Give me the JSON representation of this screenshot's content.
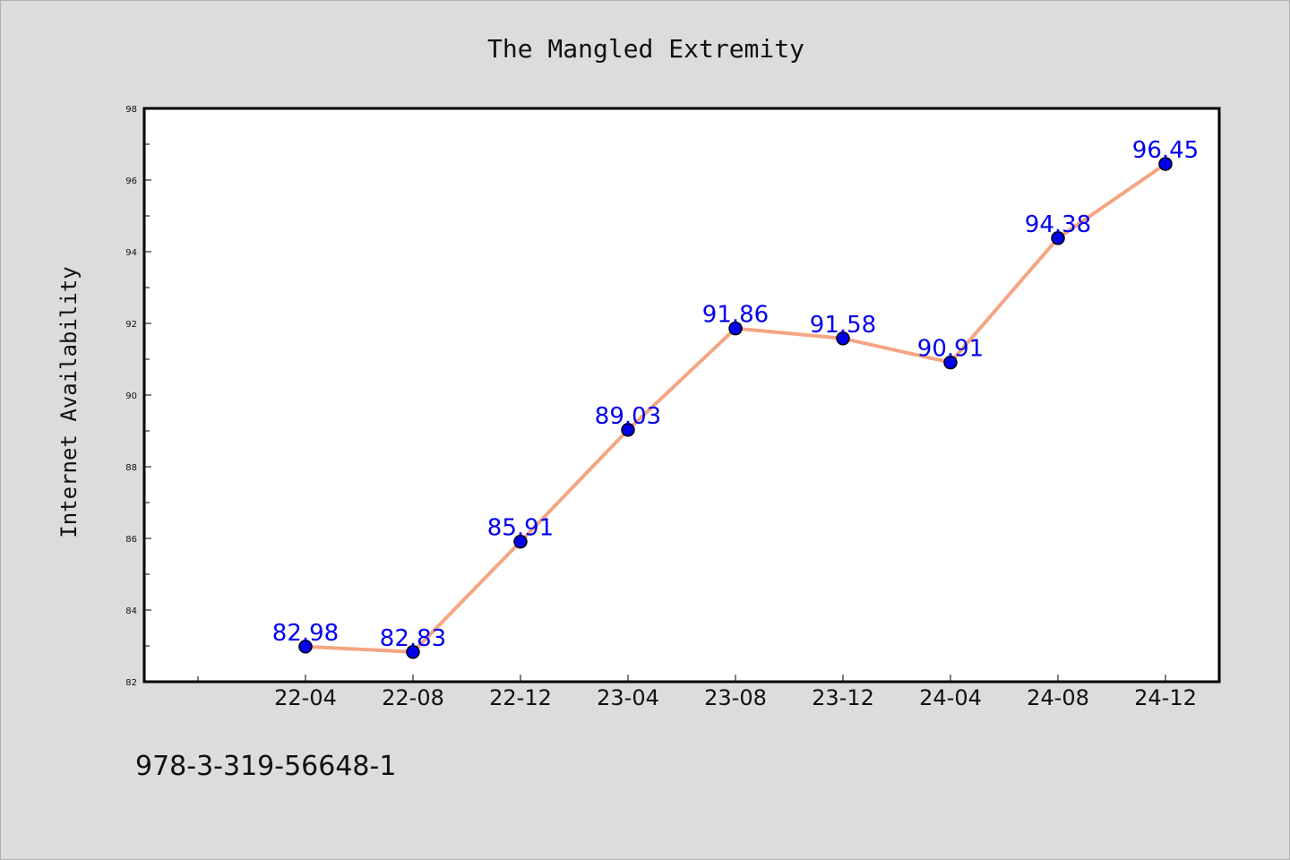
{
  "chart_data": {
    "type": "line",
    "title": "The Mangled Extremity",
    "xlabel": "",
    "ylabel": "Internet Availability",
    "categories": [
      "22-04",
      "22-08",
      "22-12",
      "23-04",
      "23-08",
      "23-12",
      "24-04",
      "24-08",
      "24-12"
    ],
    "values": [
      82.98,
      82.83,
      85.91,
      89.03,
      91.86,
      91.58,
      90.91,
      94.38,
      96.45
    ],
    "data_labels": [
      "82.98",
      "82.83",
      "85.91",
      "89.03",
      "91.86",
      "91.58",
      "90.91",
      "94.38",
      "96.45"
    ],
    "ylim": [
      82,
      98
    ],
    "yticks": [
      "82",
      "84",
      "86",
      "88",
      "90",
      "92",
      "94",
      "96",
      "98"
    ],
    "grid": false,
    "legend": "none",
    "colors": {
      "line": "#f4a582",
      "marker": "#0000ee",
      "labels": "#0000ee",
      "background": "#dcdcdc",
      "plot_background": "#ffffff"
    }
  },
  "footer": {
    "isbn": "978-3-319-56648-1"
  }
}
